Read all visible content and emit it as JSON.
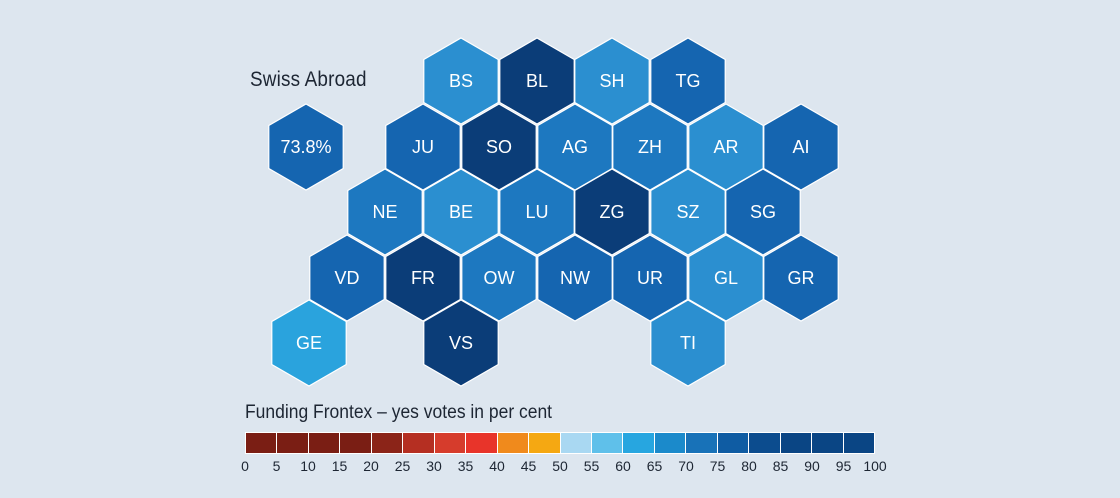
{
  "map": {
    "abroad_title": "Swiss Abroad",
    "abroad_value": "73.8%",
    "abroad_color": "#1565b0",
    "cantons": [
      {
        "code": "BS",
        "color": "#2b8fd0"
      },
      {
        "code": "BL",
        "color": "#0b3d78"
      },
      {
        "code": "SH",
        "color": "#2b8fd0"
      },
      {
        "code": "TG",
        "color": "#1565b0"
      },
      {
        "code": "JU",
        "color": "#1565b0"
      },
      {
        "code": "SO",
        "color": "#0b3d78"
      },
      {
        "code": "AG",
        "color": "#1d78c0"
      },
      {
        "code": "ZH",
        "color": "#1d78c0"
      },
      {
        "code": "AR",
        "color": "#2b8fd0"
      },
      {
        "code": "AI",
        "color": "#1565b0"
      },
      {
        "code": "NE",
        "color": "#1d78c0"
      },
      {
        "code": "BE",
        "color": "#2b8fd0"
      },
      {
        "code": "LU",
        "color": "#1d78c0"
      },
      {
        "code": "ZG",
        "color": "#0b3d78"
      },
      {
        "code": "SZ",
        "color": "#2b8fd0"
      },
      {
        "code": "SG",
        "color": "#1565b0"
      },
      {
        "code": "VD",
        "color": "#1565b0"
      },
      {
        "code": "FR",
        "color": "#0b3d78"
      },
      {
        "code": "OW",
        "color": "#1d78c0"
      },
      {
        "code": "NW",
        "color": "#1565b0"
      },
      {
        "code": "UR",
        "color": "#1565b0"
      },
      {
        "code": "GL",
        "color": "#2b8fd0"
      },
      {
        "code": "GR",
        "color": "#1565b0"
      },
      {
        "code": "GE",
        "color": "#2aa3dd"
      },
      {
        "code": "VS",
        "color": "#0b3d78"
      },
      {
        "code": "TI",
        "color": "#2b8fd0"
      }
    ]
  },
  "legend": {
    "title": "Funding Frontex – yes votes in per cent",
    "ticks": [
      "0",
      "5",
      "10",
      "15",
      "20",
      "25",
      "30",
      "35",
      "40",
      "45",
      "50",
      "55",
      "60",
      "65",
      "70",
      "75",
      "80",
      "85",
      "90",
      "95",
      "100"
    ],
    "colors": [
      "#7a1e14",
      "#7a1e14",
      "#7a1e14",
      "#7a1e14",
      "#8b2418",
      "#b52f22",
      "#d63c2c",
      "#e8342a",
      "#f08a1c",
      "#f5a812",
      "#a9d8f2",
      "#5fc0ea",
      "#27a6e0",
      "#1b8acb",
      "#1872b8",
      "#0f5ca3",
      "#0c4c8e",
      "#0a4584",
      "#0a4584",
      "#0a4584"
    ]
  }
}
